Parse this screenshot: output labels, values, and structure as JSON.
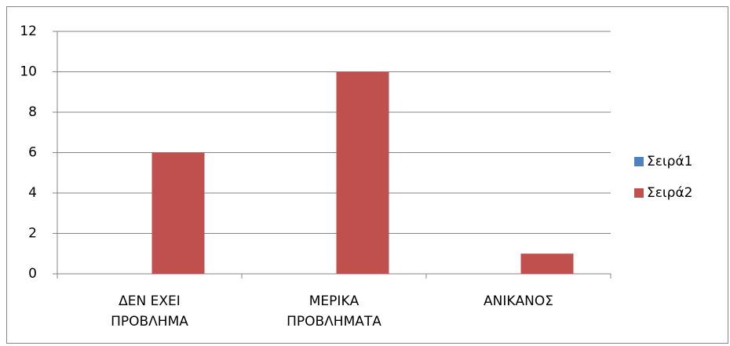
{
  "chart_data": {
    "type": "bar",
    "categories": [
      "ΔΕΝ ΕΧΕΙ ΠΡΟΒΛΗΜΑ",
      "ΜΕΡΙΚΑ ΠΡΟΒΛΗΜΑΤΑ",
      "ΑΝΙΚΑΝΟΣ"
    ],
    "series": [
      {
        "name": "Σειρά1",
        "color": "#4f81bd",
        "values": [
          0,
          0,
          0
        ]
      },
      {
        "name": "Σειρά2",
        "color": "#c0504d",
        "values": [
          6,
          10,
          1
        ]
      }
    ],
    "ylim": [
      0,
      12
    ],
    "yticks": [
      0,
      2,
      4,
      6,
      8,
      10,
      12
    ],
    "grid": true,
    "legend": "right"
  }
}
